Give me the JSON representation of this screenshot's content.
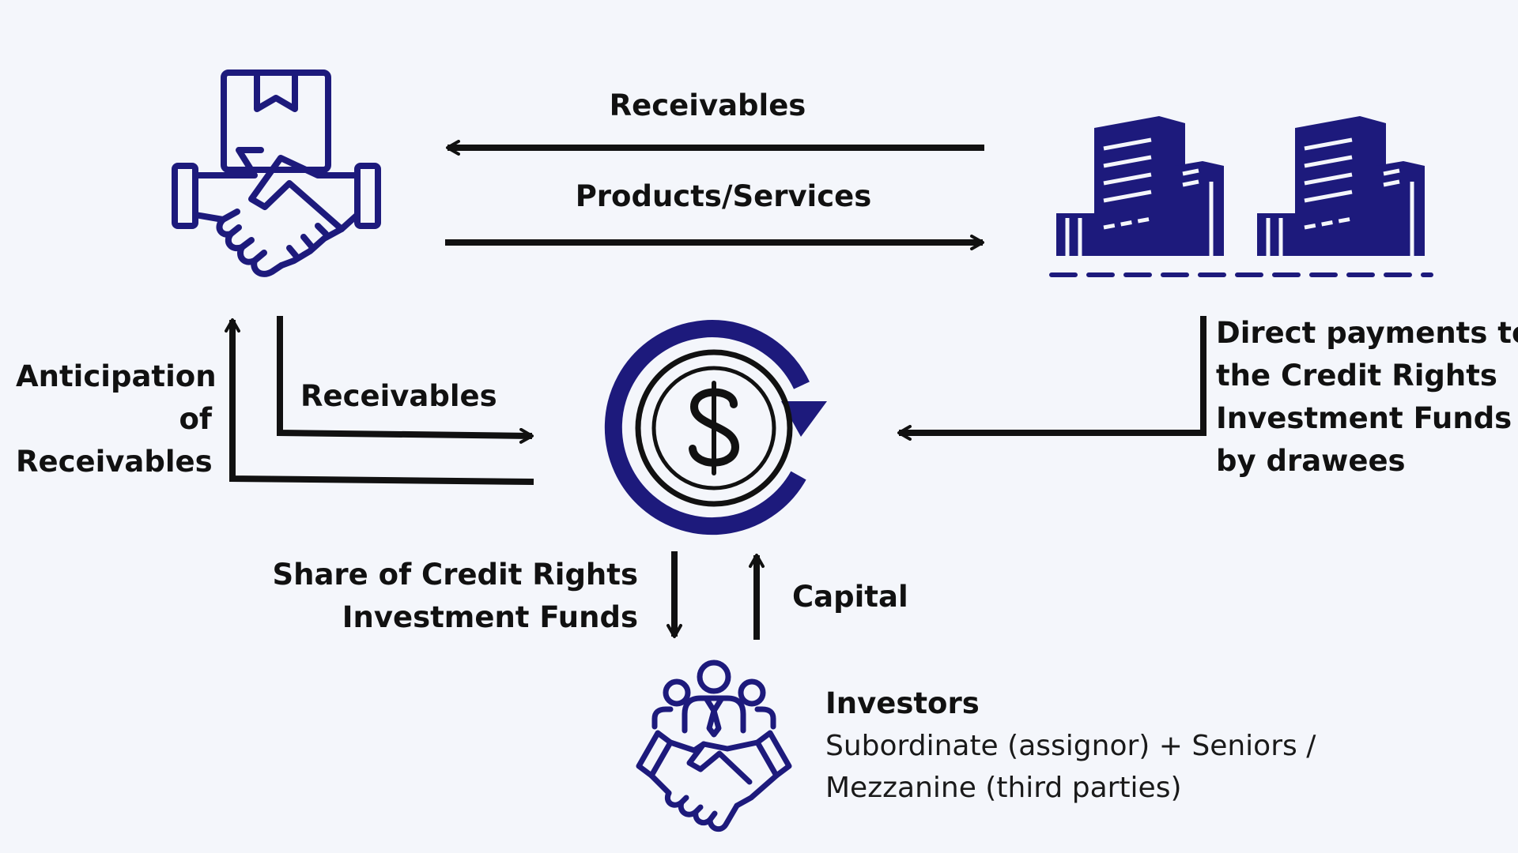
{
  "colors": {
    "background": "#f4f6fb",
    "icon": "#1d1a7c",
    "arrow": "#111111",
    "text": "#111111"
  },
  "icons": {
    "assignor": "handshake-box-icon",
    "drawees": "buildings-icon",
    "fund": "dollar-coin-cycle-icon",
    "investors": "investors-handshake-icon"
  },
  "labels": {
    "receivables_top": "Receivables",
    "products_services": "Products/Services",
    "receivables_mid": "Receivables",
    "anticipation": [
      "Anticipation",
      "of",
      "Receivables"
    ],
    "direct_payments": [
      "Direct payments to",
      "the Credit Rights",
      "Investment Funds",
      "by drawees"
    ],
    "share": [
      "Share of Credit Rights",
      "Investment Funds"
    ],
    "capital": "Capital",
    "investors_title": "Investors",
    "investors_desc": [
      "Subordinate (assignor) + Seniors /",
      "Mezzanine (third parties)"
    ]
  }
}
